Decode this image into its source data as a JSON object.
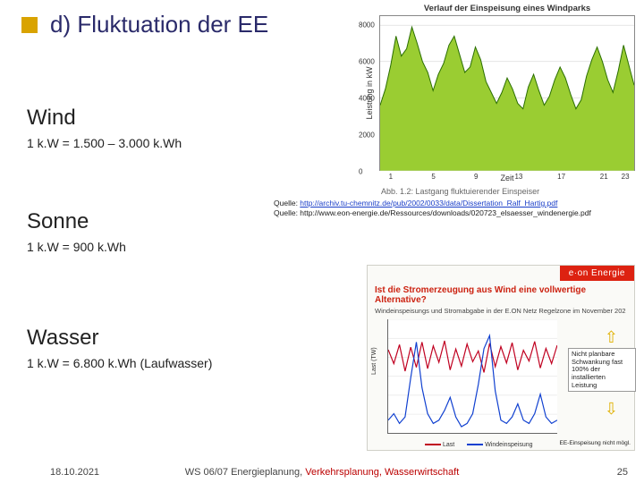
{
  "title": "d) Fluktuation der EE",
  "wind": {
    "heading": "Wind",
    "line": "1 k.W = 1.500 – 3.000 k.Wh"
  },
  "sonne": {
    "heading": "Sonne",
    "line": "1 k.W = 900 k.Wh"
  },
  "wasser": {
    "heading": "Wasser",
    "line": "1 k.W = 6.800 k.Wh (Laufwasser)"
  },
  "quelle1_label": "Quelle: ",
  "quelle1_link": "http://archiv.tu-chemnitz.de/pub/2002/0033/data/Dissertation_Ralf_Hartig.pdf",
  "quelle2": "Quelle: http://www.eon-energie.de/Ressources/downloads/020723_elsaesser_windenergie.pdf",
  "footer": {
    "date": "18.10.2021",
    "center_black": "WS 06/07 Energieplanung, ",
    "center_red": "Verkehrsplanung, Wasserwirtschaft",
    "page": "25"
  },
  "chart1": {
    "title": "Verlauf der Einspeisung eines Windparks",
    "ylabel": "Leistung in kW",
    "xlabel": "Zeit",
    "caption": "Abb. 1.2:  Lastgang fluktuierender Einspeiser",
    "yticks": [
      0,
      2000,
      4000,
      6000,
      8000
    ],
    "xticks": [
      1,
      5,
      9,
      13,
      17,
      21,
      23
    ],
    "ymax": 8500,
    "xmax": 24,
    "area_color": "#9acd32",
    "line_color": "#2a6e00",
    "grid_color": "#cccccc",
    "series": [
      [
        0,
        3600
      ],
      [
        0.5,
        4500
      ],
      [
        1,
        5800
      ],
      [
        1.5,
        7400
      ],
      [
        2,
        6300
      ],
      [
        2.5,
        6700
      ],
      [
        3,
        7900
      ],
      [
        3.5,
        7000
      ],
      [
        4,
        6000
      ],
      [
        4.5,
        5400
      ],
      [
        5,
        4400
      ],
      [
        5.5,
        5300
      ],
      [
        6,
        5900
      ],
      [
        6.5,
        6900
      ],
      [
        7,
        7400
      ],
      [
        7.5,
        6400
      ],
      [
        8,
        5400
      ],
      [
        8.5,
        5700
      ],
      [
        9,
        6800
      ],
      [
        9.5,
        6100
      ],
      [
        10,
        4900
      ],
      [
        10.5,
        4300
      ],
      [
        11,
        3700
      ],
      [
        11.5,
        4300
      ],
      [
        12,
        5100
      ],
      [
        12.5,
        4500
      ],
      [
        13,
        3700
      ],
      [
        13.5,
        3400
      ],
      [
        14,
        4600
      ],
      [
        14.5,
        5300
      ],
      [
        15,
        4400
      ],
      [
        15.5,
        3600
      ],
      [
        16,
        4100
      ],
      [
        16.5,
        5000
      ],
      [
        17,
        5700
      ],
      [
        17.5,
        5100
      ],
      [
        18,
        4200
      ],
      [
        18.5,
        3400
      ],
      [
        19,
        3900
      ],
      [
        19.5,
        5200
      ],
      [
        20,
        6100
      ],
      [
        20.5,
        6800
      ],
      [
        21,
        6000
      ],
      [
        21.5,
        5000
      ],
      [
        22,
        4300
      ],
      [
        22.5,
        5500
      ],
      [
        23,
        6900
      ],
      [
        23.5,
        5800
      ],
      [
        24,
        4700
      ]
    ]
  },
  "chart2": {
    "brand": "e·on  Energie",
    "headline": "Ist die Stromerzeugung aus Wind eine vollwertige Alternative?",
    "subline": "Windeinspeisungs und Stromabgabe in der E.ON Netz Regelzone im November 202",
    "ylabel_left": "Last (TW)",
    "ylabel_right": "Windeinspeisung",
    "legend_last": "Last",
    "legend_wind": "Windeinspeisung",
    "last_color": "#c00020",
    "wind_color": "#1040d0",
    "y_max_last": 18,
    "y_max_wind": 3.5,
    "anno1": "Nicht planbare\nSchwankung\nfast 100% der\ninstallierten\nLeistung",
    "anno2": "EE-Einspeisung nicht mögl.",
    "last_series": [
      [
        0,
        13.2
      ],
      [
        1,
        11.0
      ],
      [
        2,
        14.0
      ],
      [
        3,
        9.8
      ],
      [
        4,
        13.6
      ],
      [
        5,
        10.4
      ],
      [
        6,
        14.4
      ],
      [
        7,
        10.2
      ],
      [
        8,
        13.8
      ],
      [
        9,
        11.2
      ],
      [
        10,
        14.6
      ],
      [
        11,
        10.0
      ],
      [
        12,
        13.3
      ],
      [
        13,
        10.6
      ],
      [
        14,
        14.1
      ],
      [
        15,
        11.3
      ],
      [
        16,
        13.0
      ],
      [
        17,
        9.6
      ],
      [
        18,
        14.2
      ],
      [
        19,
        10.5
      ],
      [
        20,
        13.7
      ],
      [
        21,
        11.1
      ],
      [
        22,
        14.3
      ],
      [
        23,
        10.0
      ],
      [
        24,
        13.1
      ],
      [
        25,
        11.4
      ],
      [
        26,
        14.5
      ],
      [
        27,
        10.3
      ],
      [
        28,
        13.4
      ],
      [
        29,
        11.0
      ],
      [
        30,
        13.9
      ]
    ],
    "wind_series": [
      [
        0,
        0.4
      ],
      [
        1,
        0.6
      ],
      [
        2,
        0.3
      ],
      [
        3,
        0.5
      ],
      [
        4,
        1.7
      ],
      [
        5,
        2.8
      ],
      [
        6,
        1.4
      ],
      [
        7,
        0.6
      ],
      [
        8,
        0.3
      ],
      [
        9,
        0.4
      ],
      [
        10,
        0.7
      ],
      [
        11,
        1.1
      ],
      [
        12,
        0.5
      ],
      [
        13,
        0.2
      ],
      [
        14,
        0.3
      ],
      [
        15,
        0.6
      ],
      [
        16,
        1.5
      ],
      [
        17,
        2.6
      ],
      [
        18,
        3.0
      ],
      [
        19,
        1.3
      ],
      [
        20,
        0.4
      ],
      [
        21,
        0.3
      ],
      [
        22,
        0.5
      ],
      [
        23,
        0.9
      ],
      [
        24,
        0.4
      ],
      [
        25,
        0.3
      ],
      [
        26,
        0.6
      ],
      [
        27,
        1.2
      ],
      [
        28,
        0.5
      ],
      [
        29,
        0.3
      ],
      [
        30,
        0.4
      ]
    ]
  }
}
